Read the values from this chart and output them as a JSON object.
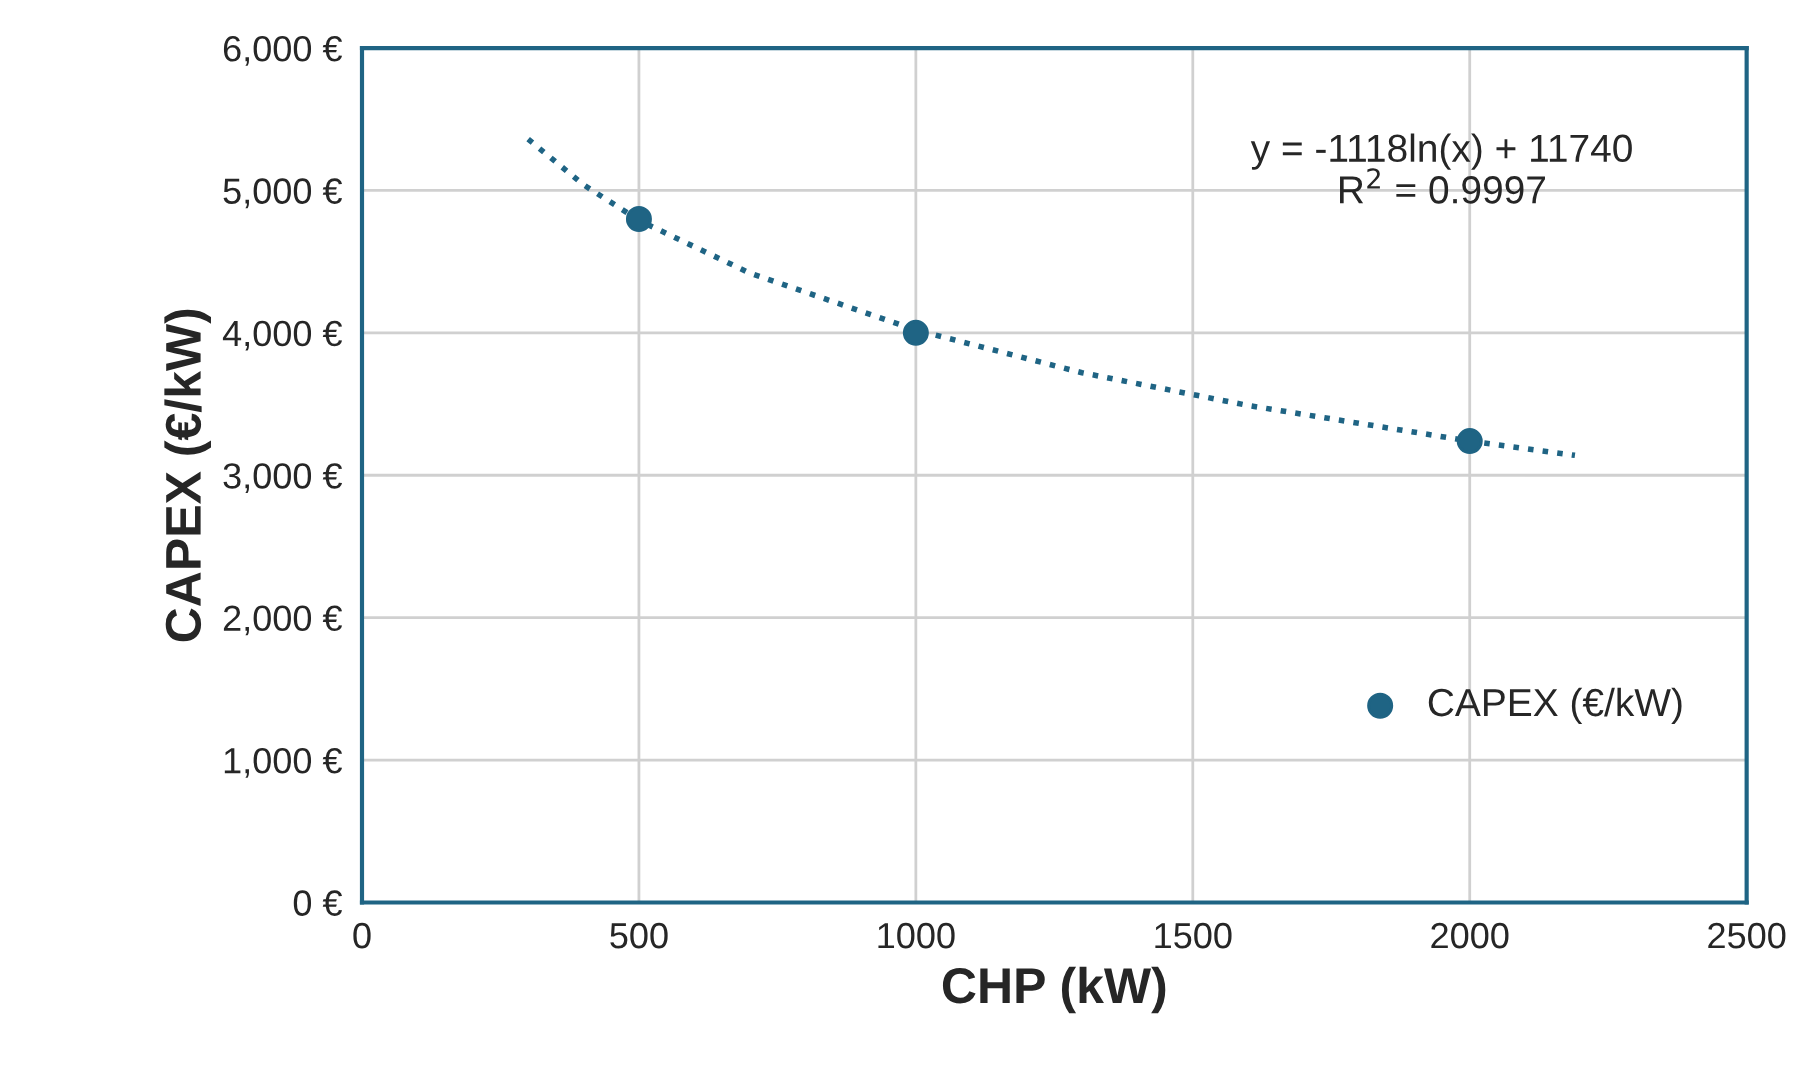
{
  "chart_data": {
    "type": "scatter",
    "xlabel": "CHP (kW)",
    "ylabel": "CAPEX (€/kW)",
    "xlim": [
      0,
      2500
    ],
    "xticks": [
      0,
      500,
      1000,
      1500,
      2000,
      2500
    ],
    "ylim": [
      0,
      6000
    ],
    "yticks": [
      {
        "value": 0,
        "label": "0 €"
      },
      {
        "value": 1000,
        "label": "1,000 €"
      },
      {
        "value": 2000,
        "label": "2,000 €"
      },
      {
        "value": 3000,
        "label": "3,000 €"
      },
      {
        "value": 4000,
        "label": "4,000 €"
      },
      {
        "value": 5000,
        "label": "5,000 €"
      },
      {
        "value": 6000,
        "label": "6,000 €"
      }
    ],
    "grid": true,
    "legend": "right",
    "series": [
      {
        "type": "line",
        "color": "#1f6484",
        "line_style": "dotted",
        "marker": "none",
        "x": [
          300,
          400,
          500,
          700,
          1000,
          1300,
          1600,
          2000,
          2190
        ],
        "values": [
          5360,
          5040,
          4790,
          4420,
          4020,
          3720,
          3490,
          3240,
          3140
        ]
      },
      {
        "name": "CAPEX (€/kW)",
        "color": "#1f6484",
        "marker": "circle",
        "x": [
          500,
          1000,
          2000
        ],
        "values": [
          4800,
          4000,
          3240
        ]
      }
    ],
    "annotations": [
      "y = -1118ln(x) + 11740\nR$^{2}$ = 0.9997"
    ]
  }
}
